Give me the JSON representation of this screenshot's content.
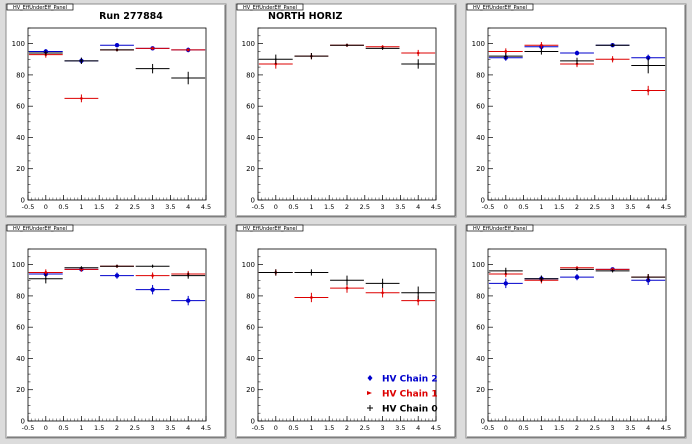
{
  "page": {
    "run_label": "Run 277884",
    "panel_title_stub": "HV_EffUnderEff_Panel"
  },
  "legend": {
    "items": [
      {
        "label": "HV Chain 2",
        "color": "#0000cc",
        "marker": "diamond"
      },
      {
        "label": "HV Chain 1",
        "color": "#dd0000",
        "marker": "triangle"
      },
      {
        "label": "HV Chain 0",
        "color": "#000000",
        "marker": "plus"
      }
    ]
  },
  "chart_data": [
    {
      "type": "scatter",
      "panel": 0,
      "label": "Run 277884",
      "xlim": [
        -0.5,
        4.5
      ],
      "ylim": [
        0,
        110
      ],
      "xticks": [
        -0.5,
        0,
        0.5,
        1,
        1.5,
        2,
        2.5,
        3,
        3.5,
        4,
        4.5
      ],
      "yticks": [
        0,
        20,
        40,
        60,
        80,
        100
      ],
      "series": [
        {
          "name": "HV Chain 2",
          "x": [
            0,
            1,
            2,
            3,
            4
          ],
          "y": [
            95,
            89,
            99,
            97,
            96
          ],
          "yerr": [
            1.5,
            2,
            1,
            1,
            1.5
          ]
        },
        {
          "name": "HV Chain 1",
          "x": [
            0,
            1,
            2,
            3,
            4
          ],
          "y": [
            93,
            65,
            96,
            97,
            96
          ],
          "yerr": [
            2,
            2.5,
            1,
            1,
            1
          ]
        },
        {
          "name": "HV Chain 0",
          "x": [
            0,
            1,
            2,
            3,
            4
          ],
          "y": [
            94,
            89,
            96,
            84,
            78
          ],
          "yerr": [
            1.5,
            2,
            1,
            3,
            4
          ]
        }
      ]
    },
    {
      "type": "scatter",
      "panel": 1,
      "label": "NORTH HORIZ",
      "xlim": [
        -0.5,
        4.5
      ],
      "ylim": [
        0,
        110
      ],
      "xticks": [
        -0.5,
        0,
        0.5,
        1,
        1.5,
        2,
        2.5,
        3,
        3.5,
        4,
        4.5
      ],
      "yticks": [
        0,
        20,
        40,
        60,
        80,
        100
      ],
      "series": [
        {
          "name": "HV Chain 2",
          "x": [],
          "y": [],
          "yerr": []
        },
        {
          "name": "HV Chain 1",
          "x": [
            0,
            1,
            2,
            3,
            4
          ],
          "y": [
            87,
            92,
            99,
            98,
            94
          ],
          "yerr": [
            3,
            2,
            1,
            1,
            2
          ]
        },
        {
          "name": "HV Chain 0",
          "x": [
            0,
            1,
            2,
            3,
            4
          ],
          "y": [
            90,
            92,
            99,
            97,
            87
          ],
          "yerr": [
            3,
            2,
            1,
            1,
            3
          ]
        }
      ]
    },
    {
      "type": "scatter",
      "panel": 2,
      "label": "",
      "xlim": [
        -0.5,
        4.5
      ],
      "ylim": [
        0,
        110
      ],
      "xticks": [
        -0.5,
        0,
        0.5,
        1,
        1.5,
        2,
        2.5,
        3,
        3.5,
        4,
        4.5
      ],
      "yticks": [
        0,
        20,
        40,
        60,
        80,
        100
      ],
      "series": [
        {
          "name": "HV Chain 2",
          "x": [
            0,
            1,
            2,
            3,
            4
          ],
          "y": [
            91,
            98,
            94,
            99,
            91
          ],
          "yerr": [
            2,
            2,
            1.5,
            1,
            2
          ]
        },
        {
          "name": "HV Chain 1",
          "x": [
            0,
            1,
            2,
            3,
            4
          ],
          "y": [
            95,
            99,
            87,
            90,
            70
          ],
          "yerr": [
            2,
            2,
            2,
            2,
            3
          ]
        },
        {
          "name": "HV Chain 0",
          "x": [
            0,
            1,
            2,
            3,
            4
          ],
          "y": [
            92,
            95,
            89,
            99,
            86
          ],
          "yerr": [
            2,
            2,
            2,
            1,
            5
          ]
        }
      ]
    },
    {
      "type": "scatter",
      "panel": 3,
      "label": "",
      "xlim": [
        -0.5,
        4.5
      ],
      "ylim": [
        0,
        110
      ],
      "xticks": [
        -0.5,
        0,
        0.5,
        1,
        1.5,
        2,
        2.5,
        3,
        3.5,
        4,
        4.5
      ],
      "yticks": [
        0,
        20,
        40,
        60,
        80,
        100
      ],
      "series": [
        {
          "name": "HV Chain 2",
          "x": [
            0,
            1,
            2,
            3,
            4
          ],
          "y": [
            94,
            97,
            93,
            84,
            77
          ],
          "yerr": [
            2,
            1.5,
            2,
            3,
            3
          ]
        },
        {
          "name": "HV Chain 1",
          "x": [
            0,
            1,
            2,
            3,
            4
          ],
          "y": [
            95,
            97,
            99,
            93,
            94
          ],
          "yerr": [
            2,
            1.5,
            1,
            2,
            2
          ]
        },
        {
          "name": "HV Chain 0",
          "x": [
            0,
            1,
            2,
            3,
            4
          ],
          "y": [
            91,
            98,
            99,
            99,
            93
          ],
          "yerr": [
            3,
            1,
            1,
            1,
            2
          ]
        }
      ]
    },
    {
      "type": "scatter",
      "panel": 4,
      "label": "",
      "xlim": [
        -0.5,
        4.5
      ],
      "ylim": [
        0,
        110
      ],
      "xticks": [
        -0.5,
        0,
        0.5,
        1,
        1.5,
        2,
        2.5,
        3,
        3.5,
        4,
        4.5
      ],
      "yticks": [
        0,
        20,
        40,
        60,
        80,
        100
      ],
      "series": [
        {
          "name": "HV Chain 2",
          "x": [],
          "y": [],
          "yerr": []
        },
        {
          "name": "HV Chain 1",
          "x": [
            0,
            1,
            2,
            3,
            4
          ],
          "y": [
            95,
            79,
            85,
            82,
            77
          ],
          "yerr": [
            2,
            3,
            3,
            3,
            3
          ]
        },
        {
          "name": "HV Chain 0",
          "x": [
            0,
            1,
            2,
            3,
            4
          ],
          "y": [
            95,
            95,
            90,
            88,
            82
          ],
          "yerr": [
            2,
            2,
            3,
            3,
            4
          ]
        }
      ]
    },
    {
      "type": "scatter",
      "panel": 5,
      "label": "",
      "xlim": [
        -0.5,
        4.5
      ],
      "ylim": [
        0,
        110
      ],
      "xticks": [
        -0.5,
        0,
        0.5,
        1,
        1.5,
        2,
        2.5,
        3,
        3.5,
        4,
        4.5
      ],
      "yticks": [
        0,
        20,
        40,
        60,
        80,
        100
      ],
      "series": [
        {
          "name": "HV Chain 2",
          "x": [
            0,
            1,
            2,
            3,
            4
          ],
          "y": [
            88,
            91,
            92,
            97,
            90
          ],
          "yerr": [
            3,
            2,
            2,
            1,
            3
          ]
        },
        {
          "name": "HV Chain 1",
          "x": [
            0,
            1,
            2,
            3,
            4
          ],
          "y": [
            94,
            90,
            98,
            97,
            92
          ],
          "yerr": [
            2,
            2,
            1,
            1,
            2
          ]
        },
        {
          "name": "HV Chain 0",
          "x": [
            0,
            1,
            2,
            3,
            4
          ],
          "y": [
            96,
            91,
            97,
            96,
            92
          ],
          "yerr": [
            2,
            2,
            1,
            1,
            2
          ]
        }
      ]
    }
  ]
}
